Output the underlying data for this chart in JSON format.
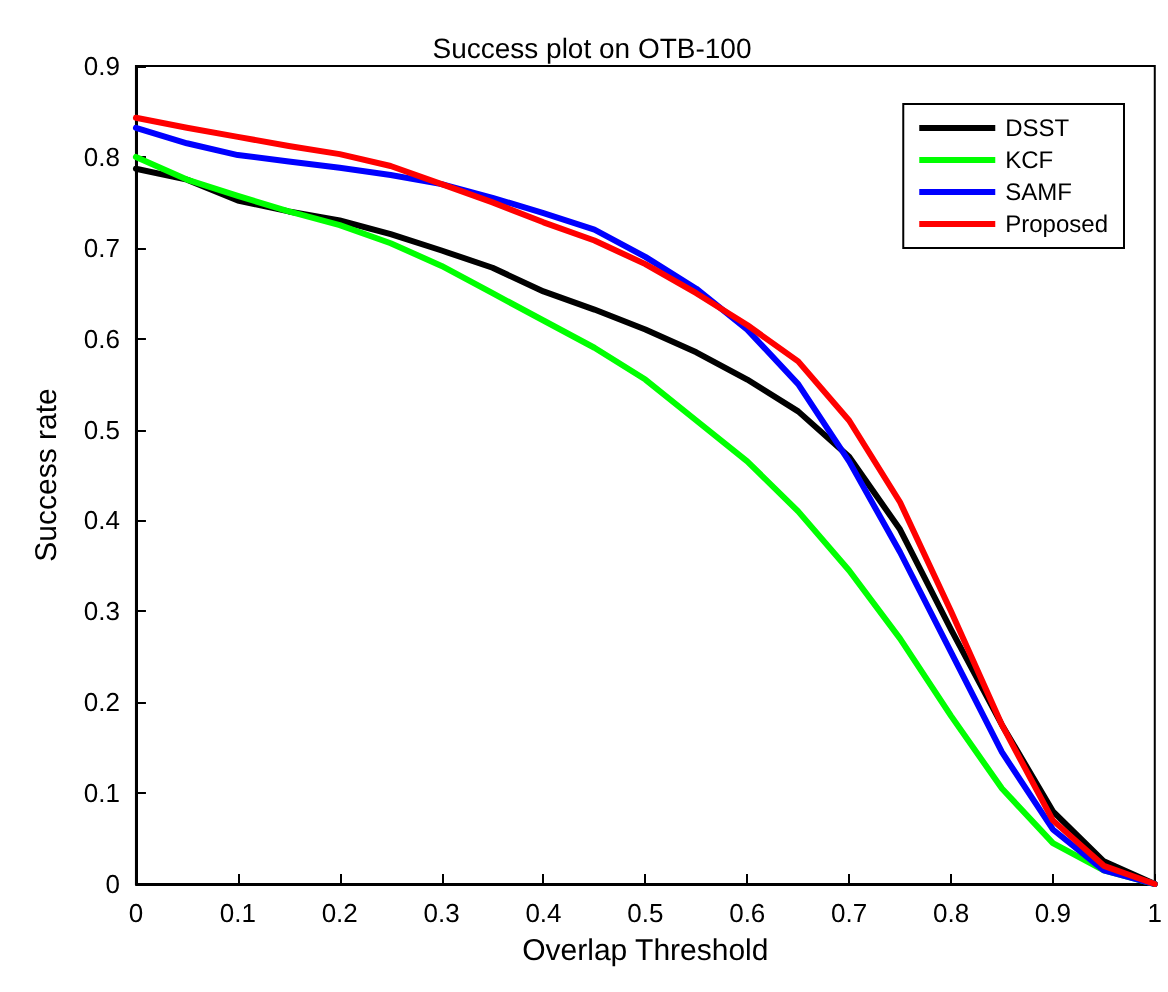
{
  "chart_data": {
    "type": "line",
    "title": "Success plot on OTB-100",
    "xlabel": "Overlap Threshold",
    "ylabel": "Success rate",
    "x": [
      0,
      0.05,
      0.1,
      0.15,
      0.2,
      0.25,
      0.3,
      0.35,
      0.4,
      0.45,
      0.5,
      0.55,
      0.6,
      0.65,
      0.7,
      0.75,
      0.8,
      0.85,
      0.9,
      0.95,
      1
    ],
    "series": [
      {
        "name": "DSST",
        "color": "#000000",
        "values": [
          0.787,
          0.775,
          0.752,
          0.74,
          0.73,
          0.715,
          0.697,
          0.678,
          0.652,
          0.632,
          0.61,
          0.585,
          0.555,
          0.52,
          0.47,
          0.39,
          0.28,
          0.175,
          0.08,
          0.025,
          0
        ]
      },
      {
        "name": "KCF",
        "color": "#00ff00",
        "values": [
          0.8,
          0.775,
          0.757,
          0.74,
          0.725,
          0.705,
          0.68,
          0.65,
          0.62,
          0.59,
          0.555,
          0.51,
          0.465,
          0.41,
          0.345,
          0.27,
          0.185,
          0.105,
          0.045,
          0.015,
          0
        ]
      },
      {
        "name": "SAMF",
        "color": "#0000ff",
        "values": [
          0.832,
          0.815,
          0.802,
          0.795,
          0.788,
          0.78,
          0.77,
          0.755,
          0.738,
          0.72,
          0.69,
          0.655,
          0.61,
          0.55,
          0.465,
          0.365,
          0.255,
          0.145,
          0.06,
          0.015,
          0
        ]
      },
      {
        "name": "Proposed",
        "color": "#ff0000",
        "values": [
          0.843,
          0.832,
          0.822,
          0.812,
          0.803,
          0.79,
          0.77,
          0.75,
          0.728,
          0.708,
          0.682,
          0.65,
          0.615,
          0.575,
          0.51,
          0.42,
          0.3,
          0.175,
          0.07,
          0.02,
          0
        ]
      }
    ],
    "xlim": [
      0,
      1
    ],
    "xticks": [
      0,
      0.1,
      0.2,
      0.3,
      0.4,
      0.5,
      0.6,
      0.7,
      0.8,
      0.9,
      1
    ],
    "ylim": [
      0,
      0.9
    ],
    "yticks": [
      0,
      0.1,
      0.2,
      0.3,
      0.4,
      0.5,
      0.6,
      0.7,
      0.8,
      0.9
    ],
    "legend": "top right",
    "grid": false,
    "marker": "none",
    "line_style": "solid"
  }
}
